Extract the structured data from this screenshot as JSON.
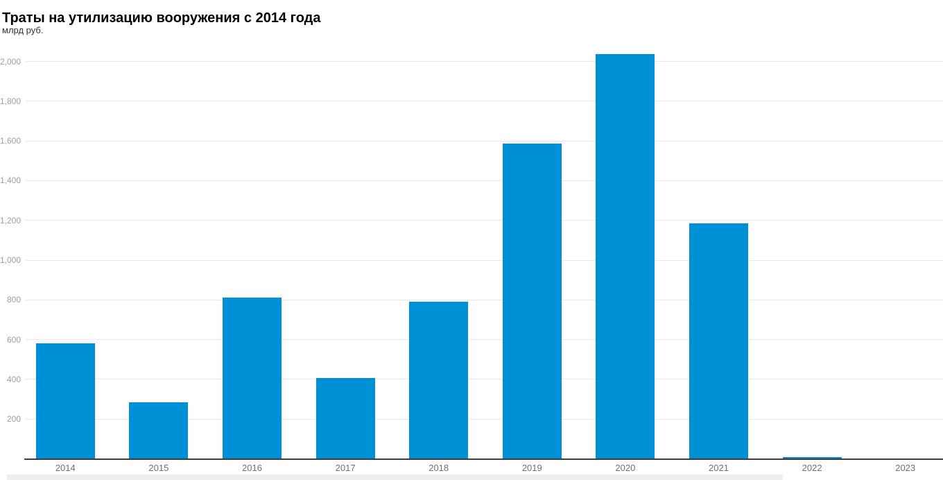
{
  "header": {
    "title": "Траты на утилизацию вооружения с 2014 года",
    "subtitle": "млрд руб."
  },
  "chart_data": {
    "type": "bar",
    "title": "Траты на утилизацию вооружения с 2014 года",
    "subtitle": "млрд руб.",
    "xlabel": "",
    "ylabel": "млрд руб.",
    "categories": [
      "2014",
      "2015",
      "2016",
      "2017",
      "2018",
      "2019",
      "2020",
      "2021",
      "2022",
      "2023"
    ],
    "values": [
      580,
      285,
      813,
      408,
      792,
      1587,
      2037,
      1186,
      8,
      0
    ],
    "ylim": [
      0,
      2100
    ],
    "yticks": [
      200,
      400,
      600,
      800,
      1000,
      1200,
      1400,
      1600,
      1800,
      2000
    ],
    "ytick_labels": [
      "200",
      "400",
      "600",
      "800",
      "1,000",
      "1,200",
      "1,400",
      "1,600",
      "1,800",
      "2,000"
    ],
    "grid": true,
    "legend": false,
    "bar_color": "#0090d5",
    "grid_color": "#e9e9e9",
    "axis_line_color": "#3c3c3c",
    "ytick_color": "#9e9e9e",
    "xtick_color": "#6f6f6f",
    "title_color": "#000000",
    "subtitle_color": "#333333"
  }
}
